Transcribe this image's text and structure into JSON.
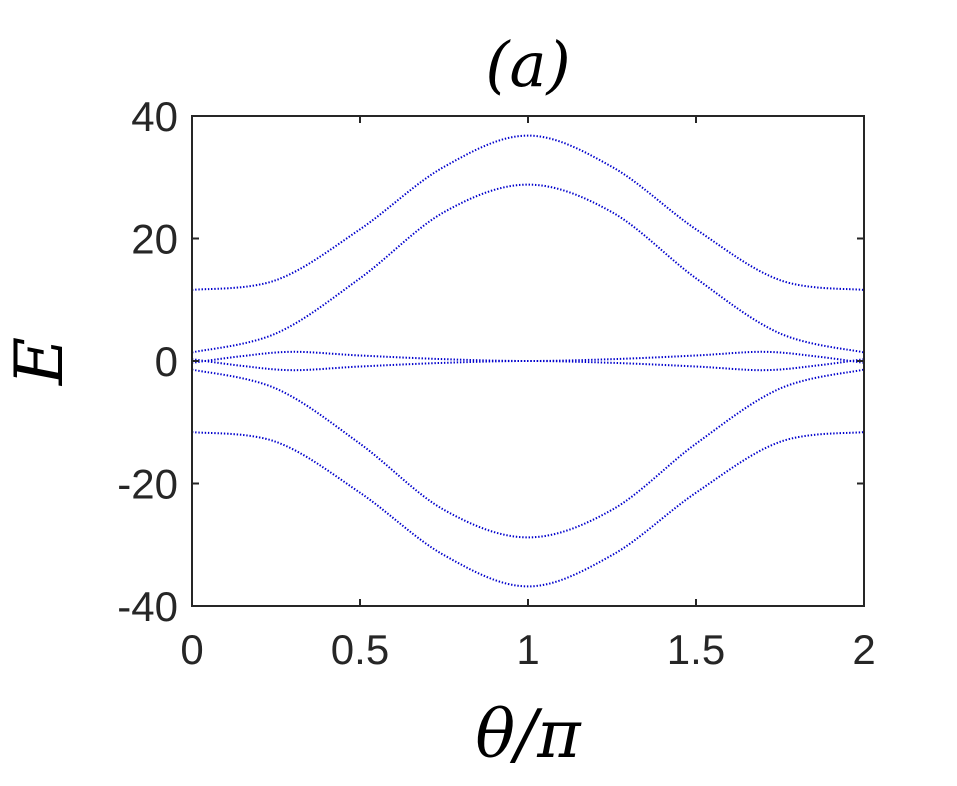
{
  "chart_data": {
    "type": "line",
    "title": "(a)",
    "xlabel": "θ/π",
    "ylabel": "E",
    "xlim": [
      0,
      2
    ],
    "ylim": [
      -40,
      40
    ],
    "xticks": [
      0,
      0.5,
      1,
      1.5,
      2
    ],
    "xtick_labels": [
      "0",
      "0.5",
      "1",
      "1.5",
      "2"
    ],
    "yticks": [
      40,
      20,
      0,
      -20,
      -40
    ],
    "ytick_labels": [
      "40",
      "20",
      "0",
      "-20",
      "-40"
    ],
    "grid": false,
    "line_style": "dotted",
    "series_color": "#0000cc",
    "axis_color": "#262626",
    "series": [
      {
        "x": [
          0,
          0.25,
          0.5,
          0.75,
          1,
          1.25,
          1.5,
          1.75,
          2
        ],
        "values": [
          11.6,
          13.2,
          21.5,
          31.7,
          36.8,
          31.7,
          21.5,
          13.2,
          11.6
        ]
      },
      {
        "x": [
          0,
          0.25,
          0.5,
          0.75,
          1,
          1.25,
          1.5,
          1.75,
          2
        ],
        "values": [
          1.4,
          4.5,
          13.5,
          24.3,
          28.8,
          24.3,
          13.5,
          4.5,
          1.4
        ]
      },
      {
        "x": [
          0,
          0.15,
          0.3,
          0.5,
          0.75,
          1,
          1.25,
          1.5,
          1.7,
          1.85,
          2
        ],
        "values": [
          0.3,
          -0.8,
          -1.5,
          -0.9,
          -0.3,
          0,
          -0.3,
          -0.9,
          -1.5,
          -0.8,
          0.3
        ]
      },
      {
        "x": [
          0,
          0.15,
          0.3,
          0.5,
          0.75,
          1,
          1.25,
          1.5,
          1.7,
          1.85,
          2
        ],
        "values": [
          -0.3,
          0.8,
          1.5,
          0.9,
          0.3,
          0,
          0.3,
          0.9,
          1.5,
          0.8,
          -0.3
        ]
      },
      {
        "x": [
          0,
          0.25,
          0.5,
          0.75,
          1,
          1.25,
          1.5,
          1.75,
          2
        ],
        "values": [
          -1.4,
          -4.5,
          -13.5,
          -24.3,
          -28.8,
          -24.3,
          -13.5,
          -4.5,
          -1.4
        ]
      },
      {
        "x": [
          0,
          0.25,
          0.5,
          0.75,
          1,
          1.25,
          1.5,
          1.75,
          2
        ],
        "values": [
          -11.6,
          -13.2,
          -21.5,
          -31.7,
          -36.8,
          -31.7,
          -21.5,
          -13.2,
          -11.6
        ]
      }
    ]
  }
}
